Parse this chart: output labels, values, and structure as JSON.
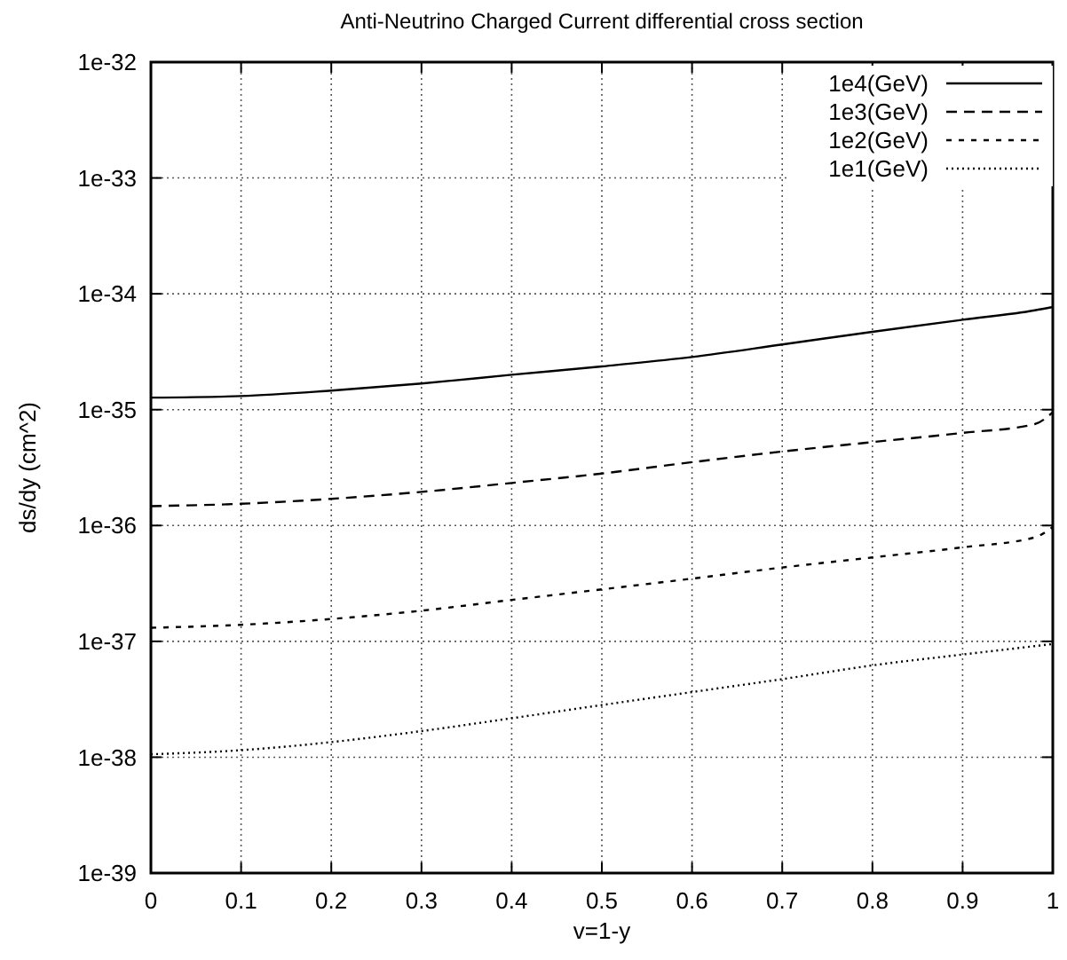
{
  "chart_data": {
    "type": "line",
    "title": "Anti-Neutrino Charged Current differential cross section",
    "xlabel": "v=1-y",
    "ylabel": "ds/dy (cm^2)",
    "log": "y",
    "grid": true,
    "legend": "top right",
    "x": [
      0,
      0.1,
      0.2,
      0.3,
      0.4,
      0.5,
      0.6,
      0.7,
      0.8,
      0.9,
      0.98,
      1
    ],
    "xlim": [
      0,
      1
    ],
    "xticks": [
      0,
      0.1,
      0.2,
      0.3,
      0.4,
      0.5,
      0.6,
      0.7,
      0.8,
      0.9,
      1
    ],
    "ylim": [
      1e-39,
      1e-32
    ],
    "yticks": [
      {
        "value": 1e-39,
        "label": "1e-39"
      },
      {
        "value": 1e-38,
        "label": "1e-38"
      },
      {
        "value": 1e-37,
        "label": "1e-37"
      },
      {
        "value": 1e-36,
        "label": "1e-36"
      },
      {
        "value": 1e-35,
        "label": "1e-35"
      },
      {
        "value": 1e-34,
        "label": "1e-34"
      },
      {
        "value": 1e-33,
        "label": "1e-33"
      },
      {
        "value": 1e-32,
        "label": "1e-32"
      }
    ],
    "series": [
      {
        "name": "1e4(GeV)",
        "color": "#000000",
        "line_style": "solid",
        "values": [
          1.27e-35,
          1.31e-35,
          1.46e-35,
          1.68e-35,
          2e-35,
          2.36e-35,
          2.85e-35,
          3.65e-35,
          4.7e-35,
          5.97e-35,
          7.2e-35,
          7.7e-35
        ]
      },
      {
        "name": "1e3(GeV)",
        "color": "#000000",
        "line_style": "dashed",
        "values": [
          1.47e-36,
          1.54e-36,
          1.7e-36,
          1.95e-36,
          2.33e-36,
          2.81e-36,
          3.52e-36,
          4.35e-36,
          5.25e-36,
          6.3e-36,
          7.5e-36,
          9.5e-36
        ]
      },
      {
        "name": "1e2(GeV)",
        "color": "#000000",
        "line_style": "dashed",
        "values": [
          1.31e-37,
          1.39e-37,
          1.56e-37,
          1.84e-37,
          2.28e-37,
          2.81e-37,
          3.48e-37,
          4.34e-37,
          5.3e-37,
          6.48e-37,
          7.9e-37,
          9.7e-37
        ]
      },
      {
        "name": "1e1(GeV)",
        "color": "#000000",
        "line_style": "dotted",
        "values": [
          1.06e-38,
          1.15e-38,
          1.35e-38,
          1.68e-38,
          2.17e-38,
          2.82e-38,
          3.65e-38,
          4.72e-38,
          6.2e-38,
          7.7e-38,
          9.1e-38,
          9.5e-38
        ]
      }
    ]
  }
}
